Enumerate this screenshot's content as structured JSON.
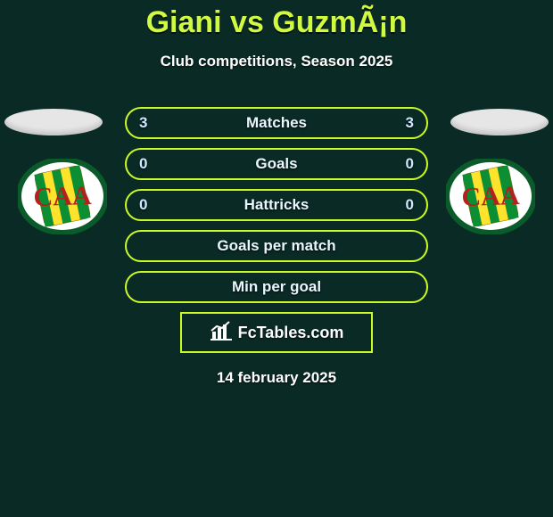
{
  "title": "Giani vs GuzmÃ¡n",
  "subtitle": "Club competitions, Season 2025",
  "date": "14 february 2025",
  "brand": "FcTables.com",
  "colors": {
    "background": "#0a2b25",
    "accent": "#cbfa25",
    "title": "#d0fa41",
    "text": "#ffffff",
    "statText": "#e8f7ff"
  },
  "rows": [
    {
      "label": "Matches",
      "left": "3",
      "right": "3"
    },
    {
      "label": "Goals",
      "left": "0",
      "right": "0"
    },
    {
      "label": "Hattricks",
      "left": "0",
      "right": "0"
    },
    {
      "label": "Goals per match",
      "left": "",
      "right": ""
    },
    {
      "label": "Min per goal",
      "left": "",
      "right": ""
    }
  ],
  "badge": {
    "ring": "#0a5a2a",
    "panel": "#f4d421",
    "bandGreen": "#0c8f33",
    "bandYellow": "#ffe22c",
    "letters": "CAA",
    "letterColor": "#b3201d"
  }
}
